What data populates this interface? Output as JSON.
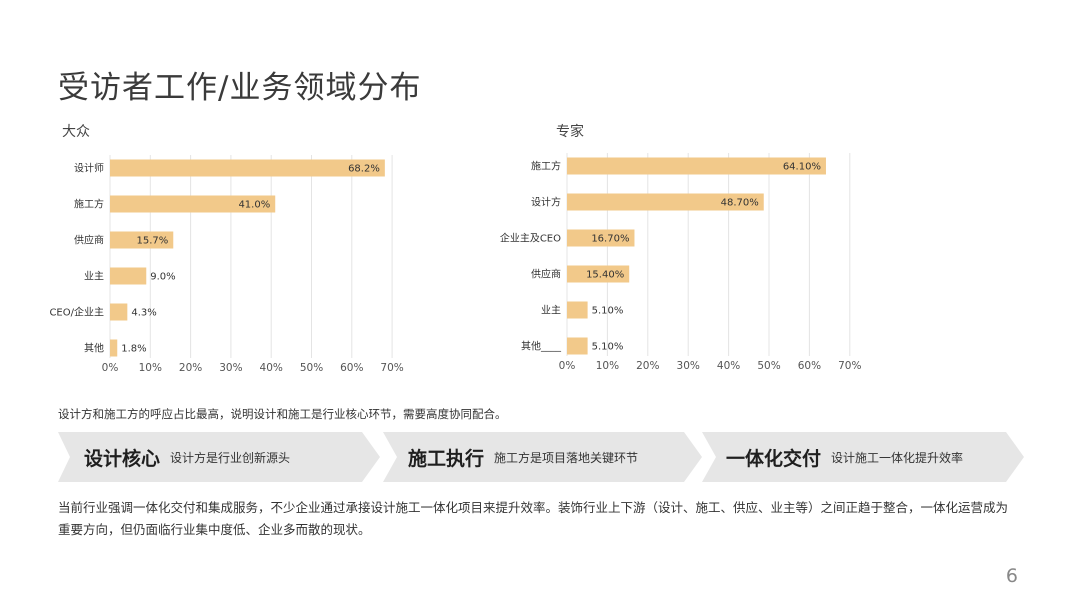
{
  "title": "受访者工作/业务领域分布",
  "charts": {
    "public": {
      "label": "大众"
    },
    "expert": {
      "label": "专家"
    }
  },
  "note": "设计方和施工方的呼应占比最高，说明设计和施工是行业核心环节，需要高度协同配合。",
  "banners": [
    {
      "title": "设计核心",
      "desc": "设计方是行业创新源头"
    },
    {
      "title": "施工执行",
      "desc": "施工方是项目落地关键环节"
    },
    {
      "title": "一体化交付",
      "desc": "设计施工一体化提升效率"
    }
  ],
  "summary": "当前行业强调一体化交付和集成服务，不少企业通过承接设计施工一体化项目来提升效率。装饰行业上下游（设计、施工、供应、业主等）之间正趋于整合，一体化运营成为重要方向，但仍面临行业集中度低、企业多而散的现状。",
  "page_number": "6",
  "colors": {
    "bar": "#f2c98a",
    "grid": "#e4e4e4",
    "banner": "#e6e6e6"
  },
  "chart_data": [
    {
      "type": "bar",
      "orientation": "horizontal",
      "title": "大众",
      "categories": [
        "设计师",
        "施工方",
        "供应商",
        "业主",
        "CEO/企业主",
        "其他"
      ],
      "values": [
        68.2,
        41.0,
        15.7,
        9.0,
        4.3,
        1.8
      ],
      "value_labels": [
        "68.2%",
        "41.0%",
        "15.7%",
        "9.0%",
        "4.3%",
        "1.8%"
      ],
      "xlim": [
        0,
        70
      ],
      "x_ticks": [
        "0%",
        "10%",
        "20%",
        "30%",
        "40%",
        "50%",
        "60%",
        "70%"
      ],
      "grid": true
    },
    {
      "type": "bar",
      "orientation": "horizontal",
      "title": "专家",
      "categories": [
        "施工方",
        "设计方",
        "企业主及CEO",
        "供应商",
        "业主",
        "其他____"
      ],
      "values": [
        64.1,
        48.7,
        16.7,
        15.4,
        5.1,
        5.1
      ],
      "value_labels": [
        "64.10%",
        "48.70%",
        "16.70%",
        "15.40%",
        "5.10%",
        "5.10%"
      ],
      "xlim": [
        0,
        70
      ],
      "x_ticks": [
        "0%",
        "10%",
        "20%",
        "30%",
        "40%",
        "50%",
        "60%",
        "70%"
      ],
      "grid": true
    }
  ]
}
